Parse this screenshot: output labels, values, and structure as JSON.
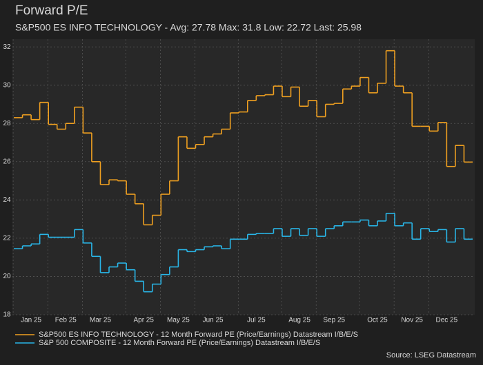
{
  "chart_data": {
    "type": "line",
    "title": "Forward P/E",
    "subtitle": "S&P500 ES INFO TECHNOLOGY - Avg: 27.78 Max: 31.8 Low: 22.72 Last: 25.98",
    "source": "Source: LSEG Datastream",
    "categories": [
      null,
      null,
      "Jan 25",
      null,
      null,
      null,
      "Feb 25",
      null,
      null,
      null,
      "Mar 25",
      null,
      null,
      null,
      null,
      "Apr 25",
      null,
      null,
      null,
      "May 25",
      null,
      null,
      null,
      "Jun 25",
      null,
      null,
      null,
      null,
      "Jul 25",
      null,
      null,
      null,
      null,
      "Aug 25",
      null,
      null,
      null,
      "Sep 25",
      null,
      null,
      null,
      null,
      "Oct 25",
      null,
      null,
      null,
      "Nov 25",
      null,
      null,
      null,
      "Dec 25",
      null,
      null
    ],
    "series": [
      {
        "name": "S&P500 ES INFO TECHNOLOGY - 12 Month Forward PE (Price/Earnings) Datastream I/B/E/S",
        "color": "#f0a020",
        "values": [
          28.3,
          28.45,
          28.2,
          29.1,
          27.95,
          27.7,
          28.0,
          28.85,
          27.5,
          26.0,
          24.8,
          25.05,
          25.0,
          24.3,
          23.8,
          22.7,
          23.2,
          24.3,
          25.0,
          27.3,
          26.7,
          26.9,
          27.3,
          27.45,
          27.7,
          28.55,
          28.6,
          29.2,
          29.45,
          29.5,
          29.95,
          29.4,
          29.9,
          28.9,
          29.2,
          28.35,
          29.0,
          29.05,
          29.8,
          29.95,
          30.4,
          29.6,
          30.1,
          31.8,
          29.95,
          29.6,
          27.85,
          27.85,
          27.6,
          28.05,
          25.75,
          26.85,
          25.98
        ]
      },
      {
        "name": "S&P 500 COMPOSITE - 12 Month Forward PE (Price/Earnings) Datastream I/B/E/S",
        "color": "#29b6e8",
        "values": [
          21.45,
          21.6,
          21.7,
          22.2,
          22.05,
          22.05,
          22.05,
          22.45,
          21.75,
          21.05,
          20.2,
          20.5,
          20.7,
          20.35,
          19.75,
          19.2,
          19.6,
          20.1,
          20.5,
          21.4,
          21.3,
          21.4,
          21.55,
          21.6,
          21.45,
          21.95,
          21.95,
          22.2,
          22.25,
          22.25,
          22.5,
          22.1,
          22.5,
          22.15,
          22.5,
          22.1,
          22.5,
          22.65,
          22.85,
          22.85,
          22.95,
          22.65,
          22.9,
          23.3,
          22.65,
          22.8,
          21.95,
          22.5,
          22.35,
          22.45,
          21.8,
          22.5,
          21.95
        ]
      }
    ],
    "ylim": [
      18,
      32.4
    ],
    "yticks": [
      18,
      20,
      22,
      24,
      26,
      28,
      30,
      32
    ],
    "grid": true
  }
}
